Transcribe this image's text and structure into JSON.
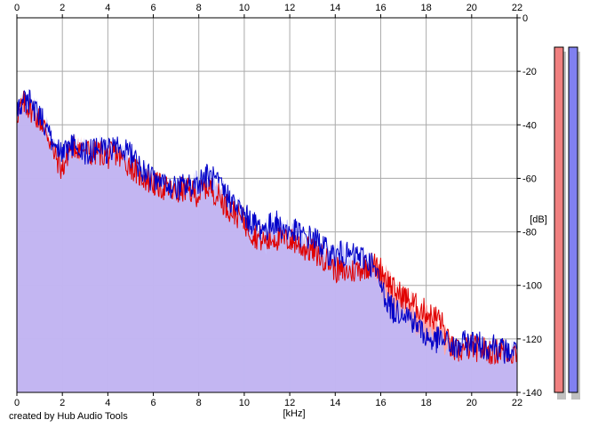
{
  "chart_data": {
    "type": "area",
    "xlabel": "[kHz]",
    "ylabel": "[dB]",
    "xlim": [
      0,
      22
    ],
    "ylim": [
      -140,
      0
    ],
    "xticks": [
      "0",
      "2",
      "4",
      "6",
      "8",
      "10",
      "12",
      "14",
      "16",
      "18",
      "20",
      "22"
    ],
    "yticks": [
      "0",
      "-20",
      "-40",
      "-60",
      "-80",
      "-100",
      "-120",
      "-140"
    ],
    "grid": true,
    "series": [
      {
        "color": "#e00000",
        "fill": "#ff9c9c",
        "points": [
          [
            0,
            -36
          ],
          [
            0.3,
            -32
          ],
          [
            0.6,
            -34
          ],
          [
            1,
            -38
          ],
          [
            1.3,
            -42
          ],
          [
            1.6,
            -50
          ],
          [
            2,
            -57
          ],
          [
            2.3,
            -49
          ],
          [
            2.6,
            -48
          ],
          [
            3,
            -49
          ],
          [
            3.3,
            -51
          ],
          [
            3.6,
            -50
          ],
          [
            4,
            -52
          ],
          [
            4.3,
            -50
          ],
          [
            4.6,
            -53
          ],
          [
            5,
            -55
          ],
          [
            5.3,
            -58
          ],
          [
            5.6,
            -60
          ],
          [
            6,
            -62
          ],
          [
            6.3,
            -63
          ],
          [
            6.6,
            -64
          ],
          [
            7,
            -66
          ],
          [
            7.3,
            -64
          ],
          [
            7.6,
            -65
          ],
          [
            8,
            -66
          ],
          [
            8.3,
            -63
          ],
          [
            8.6,
            -64
          ],
          [
            9,
            -68
          ],
          [
            9.3,
            -71
          ],
          [
            9.6,
            -73
          ],
          [
            10,
            -76
          ],
          [
            10.3,
            -80
          ],
          [
            10.6,
            -82
          ],
          [
            11,
            -84
          ],
          [
            11.3,
            -82
          ],
          [
            11.6,
            -83
          ],
          [
            12,
            -83
          ],
          [
            12.3,
            -84
          ],
          [
            12.6,
            -86
          ],
          [
            13,
            -87
          ],
          [
            13.3,
            -89
          ],
          [
            13.6,
            -90
          ],
          [
            14,
            -94
          ],
          [
            14.3,
            -95
          ],
          [
            14.6,
            -95
          ],
          [
            15,
            -94
          ],
          [
            15.3,
            -93
          ],
          [
            15.6,
            -92
          ],
          [
            16,
            -94
          ],
          [
            16.3,
            -98
          ],
          [
            16.6,
            -102
          ],
          [
            17,
            -104
          ],
          [
            17.3,
            -106
          ],
          [
            17.6,
            -108
          ],
          [
            18,
            -110
          ],
          [
            18.3,
            -112
          ],
          [
            18.6,
            -112
          ],
          [
            19,
            -122
          ],
          [
            19.3,
            -125
          ],
          [
            19.6,
            -124
          ],
          [
            20,
            -123
          ],
          [
            20.3,
            -124
          ],
          [
            20.6,
            -124
          ],
          [
            21,
            -125
          ],
          [
            21.3,
            -124
          ],
          [
            21.6,
            -125
          ],
          [
            22,
            -125
          ]
        ]
      },
      {
        "color": "#0000c8",
        "fill": "#b8b8ff",
        "points": [
          [
            0,
            -34
          ],
          [
            0.3,
            -31
          ],
          [
            0.6,
            -32
          ],
          [
            1,
            -36
          ],
          [
            1.3,
            -41
          ],
          [
            1.6,
            -47
          ],
          [
            2,
            -52
          ],
          [
            2.3,
            -48
          ],
          [
            2.6,
            -48
          ],
          [
            3,
            -50
          ],
          [
            3.3,
            -50
          ],
          [
            3.6,
            -48
          ],
          [
            4,
            -50
          ],
          [
            4.3,
            -48
          ],
          [
            4.6,
            -49
          ],
          [
            5,
            -51
          ],
          [
            5.3,
            -55
          ],
          [
            5.6,
            -57
          ],
          [
            6,
            -61
          ],
          [
            6.3,
            -62
          ],
          [
            6.6,
            -62
          ],
          [
            7,
            -64
          ],
          [
            7.3,
            -63
          ],
          [
            7.6,
            -63
          ],
          [
            8,
            -61
          ],
          [
            8.3,
            -59
          ],
          [
            8.6,
            -60
          ],
          [
            9,
            -64
          ],
          [
            9.3,
            -67
          ],
          [
            9.6,
            -70
          ],
          [
            10,
            -74
          ],
          [
            10.3,
            -76
          ],
          [
            10.6,
            -78
          ],
          [
            11,
            -79
          ],
          [
            11.3,
            -76
          ],
          [
            11.6,
            -78
          ],
          [
            12,
            -80
          ],
          [
            12.3,
            -80
          ],
          [
            12.6,
            -82
          ],
          [
            13,
            -82
          ],
          [
            13.3,
            -84
          ],
          [
            13.6,
            -87
          ],
          [
            14,
            -89
          ],
          [
            14.3,
            -88
          ],
          [
            14.6,
            -89
          ],
          [
            15,
            -89
          ],
          [
            15.3,
            -90
          ],
          [
            15.6,
            -92
          ],
          [
            16,
            -100
          ],
          [
            16.3,
            -106
          ],
          [
            16.6,
            -110
          ],
          [
            17,
            -109
          ],
          [
            17.3,
            -112
          ],
          [
            17.6,
            -115
          ],
          [
            18,
            -119
          ],
          [
            18.3,
            -121
          ],
          [
            18.6,
            -120
          ],
          [
            19,
            -122
          ],
          [
            19.3,
            -124
          ],
          [
            19.6,
            -122
          ],
          [
            20,
            -121
          ],
          [
            20.3,
            -122
          ],
          [
            20.6,
            -123
          ],
          [
            21,
            -122
          ],
          [
            21.3,
            -124
          ],
          [
            21.6,
            -125
          ],
          [
            22,
            -124
          ]
        ]
      }
    ]
  },
  "meters": [
    {
      "name": "left-level-meter",
      "color": "#f08080"
    },
    {
      "name": "right-level-meter",
      "color": "#8080f0"
    }
  ],
  "credit_text": "created by Hub Audio Tools"
}
